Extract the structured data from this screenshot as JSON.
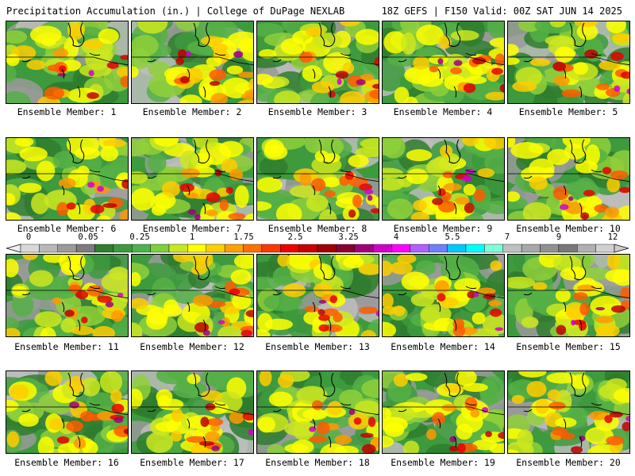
{
  "header": {
    "title_left": "Precipitation Accumulation (in.) | College of DuPage NEXLAB",
    "title_right": "18Z GEFS | F150 Valid: 00Z SAT JUN 14 2025"
  },
  "panels": [
    {
      "label": "Ensemble Member: 1"
    },
    {
      "label": "Ensemble Member: 2"
    },
    {
      "label": "Ensemble Member: 3"
    },
    {
      "label": "Ensemble Member: 4"
    },
    {
      "label": "Ensemble Member: 5"
    },
    {
      "label": "Ensemble Member: 6"
    },
    {
      "label": "Ensemble Member: 7"
    },
    {
      "label": "Ensemble Member: 8"
    },
    {
      "label": "Ensemble Member: 9"
    },
    {
      "label": "Ensemble Member: 10"
    },
    {
      "label": "Ensemble Member: 11"
    },
    {
      "label": "Ensemble Member: 12"
    },
    {
      "label": "Ensemble Member: 13"
    },
    {
      "label": "Ensemble Member: 14"
    },
    {
      "label": "Ensemble Member: 15"
    },
    {
      "label": "Ensemble Member: 16"
    },
    {
      "label": "Ensemble Member: 17"
    },
    {
      "label": "Ensemble Member: 18"
    },
    {
      "label": "Ensemble Member: 19"
    },
    {
      "label": "Ensemble Member: 20"
    }
  ],
  "colorbar": {
    "tick_labels": [
      "0",
      "0.05",
      "0.25",
      "1",
      "1.75",
      "2.5",
      "3.25",
      "4",
      "5.5",
      "7",
      "9",
      "12"
    ],
    "colors": [
      "#d8d8d8",
      "#b8b8b8",
      "#9a9a9a",
      "#7c7c7c",
      "#2f7f2f",
      "#3c9a3c",
      "#4db34d",
      "#7fd03a",
      "#c8e81e",
      "#ffff00",
      "#ffd000",
      "#ffa000",
      "#ff7000",
      "#ff3800",
      "#ee0000",
      "#c80000",
      "#a00000",
      "#8a0030",
      "#a0007a",
      "#d000c8",
      "#ff00ff",
      "#b060ff",
      "#6f7fff",
      "#00c8ff",
      "#00ffff",
      "#7fffd8",
      "#c0c0c0",
      "#a8a8a8",
      "#909090",
      "#787878",
      "#b0b0b0",
      "#d0d0d0"
    ]
  }
}
